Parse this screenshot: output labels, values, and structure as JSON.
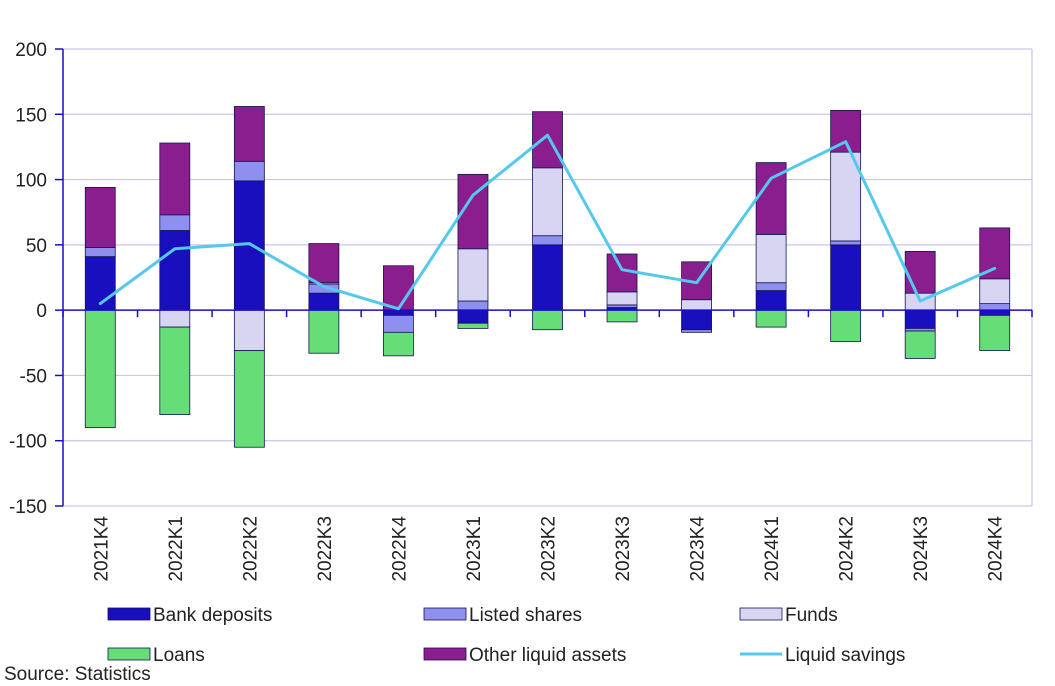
{
  "chart_data": {
    "type": "bar",
    "stacked": true,
    "categories": [
      "2021K4",
      "2022K1",
      "2022K2",
      "2022K3",
      "2022K4",
      "2023K1",
      "2023K2",
      "2023K3",
      "2023K4",
      "2024K1",
      "2024K2",
      "2024K3",
      "2024K4"
    ],
    "ylim": [
      -150,
      200
    ],
    "yticks": [
      200,
      150,
      100,
      50,
      0,
      -50,
      -100,
      -150
    ],
    "grid": true,
    "legend_position": "bottom",
    "series": [
      {
        "name": "Bank deposits",
        "type": "bar",
        "color": "#1a0fbf",
        "values": [
          41,
          61,
          99,
          13,
          -4,
          -10,
          50,
          2,
          -15,
          15,
          50,
          -14,
          -4
        ]
      },
      {
        "name": "Listed shares",
        "type": "bar",
        "color": "#8f8ff0",
        "values": [
          7,
          12,
          15,
          7,
          -13,
          7,
          7,
          2,
          -2,
          6,
          3,
          -2,
          5
        ]
      },
      {
        "name": "Funds",
        "type": "bar",
        "color": "#d7d5f2",
        "values": [
          0,
          -13,
          -31,
          1,
          0,
          40,
          52,
          10,
          8,
          37,
          68,
          13,
          19
        ]
      },
      {
        "name": "Loans",
        "type": "bar",
        "color": "#66dd77",
        "values": [
          -90,
          -67,
          -74,
          -33,
          -18,
          -4,
          -15,
          -9,
          0,
          -13,
          -24,
          -21,
          -27
        ]
      },
      {
        "name": "Other liquid assets",
        "type": "bar",
        "color": "#8b1e8f",
        "values": [
          46,
          55,
          42,
          30,
          34,
          57,
          43,
          29,
          29,
          55,
          32,
          32,
          39
        ]
      },
      {
        "name": "Liquid savings",
        "type": "line",
        "color": "#55c8ee",
        "values": [
          5,
          47,
          51,
          18,
          1,
          88,
          134,
          31,
          21,
          101,
          129,
          7,
          32
        ]
      }
    ]
  },
  "legend": {
    "items": [
      {
        "label": "Bank deposits",
        "kind": "bar",
        "color": "#1a0fbf"
      },
      {
        "label": "Listed shares",
        "kind": "bar",
        "color": "#8f8ff0"
      },
      {
        "label": "Funds",
        "kind": "bar",
        "color": "#d7d5f2"
      },
      {
        "label": "Loans",
        "kind": "bar",
        "color": "#66dd77"
      },
      {
        "label": "Other liquid assets",
        "kind": "bar",
        "color": "#8b1e8f"
      },
      {
        "label": "Liquid savings",
        "kind": "line",
        "color": "#55c8ee"
      }
    ]
  },
  "source_text": "Source: Statistics"
}
